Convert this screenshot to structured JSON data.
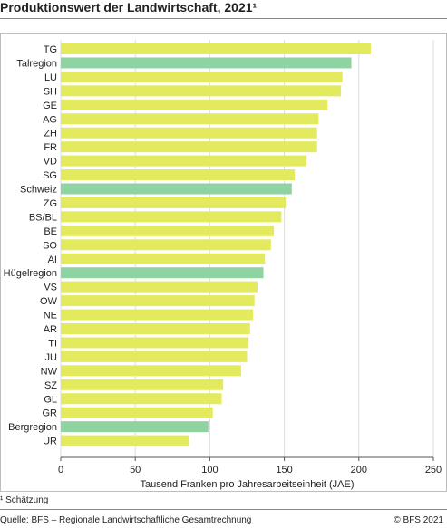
{
  "header": {
    "title": "Produktionswert der Landwirtschaft, 2021¹"
  },
  "footer": {
    "footnote": "¹   Schätzung",
    "source": "Quelle: BFS – Regionale Landwirtschaftliche Gesamtrechnung",
    "copyright": "© BFS 2021"
  },
  "colors": {
    "canton": "#e3ea5d",
    "region": "#8fd3a3",
    "grid": "#dcdcdc",
    "axis": "#555555"
  },
  "chart_data": {
    "type": "bar",
    "orientation": "horizontal",
    "xlabel": "Tausend Franken pro Jahresarbeitseinheit (JAE)",
    "xlim": [
      0,
      250
    ],
    "xticks": [
      "0",
      "50",
      "100",
      "150",
      "200",
      "250"
    ],
    "grid": true,
    "categories": [
      "TG",
      "Talregion",
      "LU",
      "SH",
      "GE",
      "AG",
      "ZH",
      "FR",
      "VD",
      "SG",
      "Schweiz",
      "ZG",
      "BS/BL",
      "BE",
      "SO",
      "AI",
      "Hügelregion",
      "VS",
      "OW",
      "NE",
      "AR",
      "TI",
      "JU",
      "NW",
      "SZ",
      "GL",
      "GR",
      "Bergregion",
      "UR"
    ],
    "values": [
      208,
      195,
      189,
      188,
      179,
      173,
      172,
      172,
      165,
      157,
      155,
      151,
      148,
      143,
      141,
      137,
      136,
      132,
      130,
      129,
      127,
      126,
      125,
      121,
      109,
      108,
      102,
      99,
      86
    ],
    "highlight": [
      "Talregion",
      "Schweiz",
      "Hügelregion",
      "Bergregion"
    ]
  }
}
